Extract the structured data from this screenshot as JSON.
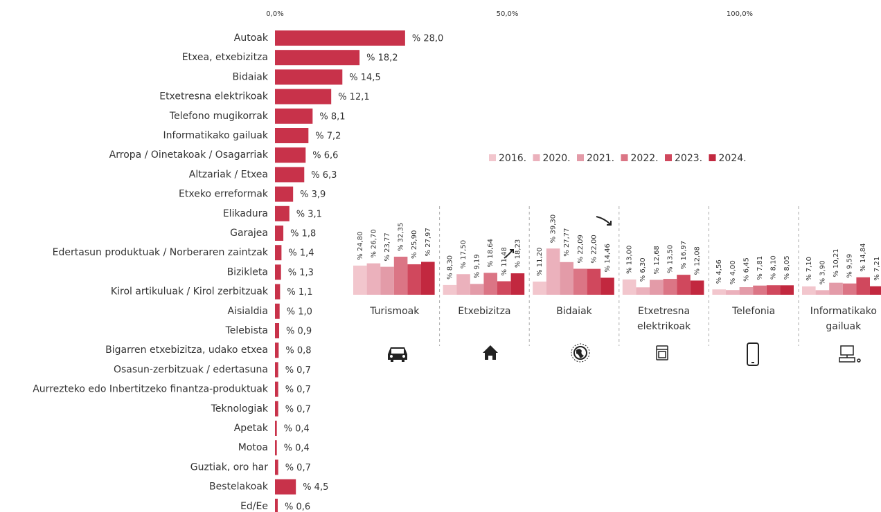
{
  "chart_data": [
    {
      "type": "bar",
      "orientation": "horizontal",
      "color": "#c8324a",
      "categories": [
        "Autoak",
        "Etxea, etxebizitza",
        "Bidaiak",
        "Etxetresna elektrikoak",
        "Telefono mugikorrak",
        "Informatikako gailuak",
        "Arropa / Oinetakoak / Osagarriak",
        "Altzariak / Etxea",
        "Etxeko erreformak",
        "Elikadura",
        "Garajea",
        "Edertasun produktuak / Norberaren zaintzak",
        "Bizikleta",
        "Kirol artikuluak / Kirol zerbitzuak",
        "Aisialdia",
        "Telebista",
        "Bigarren etxebizitza, udako etxea",
        "Osasun-zerbitzuak / edertasuna",
        "Aurrezteko edo Inbertitzeko finantza-produktuak",
        "Teknologiak",
        "Apetak",
        "Motoa",
        "Guztiak, oro har",
        "Bestelakoak",
        "Ed/Ee"
      ],
      "values": [
        28.0,
        18.2,
        14.5,
        12.1,
        8.1,
        7.2,
        6.6,
        6.3,
        3.9,
        3.1,
        1.8,
        1.4,
        1.3,
        1.1,
        1.0,
        0.9,
        0.8,
        0.7,
        0.7,
        0.7,
        0.4,
        0.4,
        0.7,
        4.5,
        0.6
      ],
      "value_labels": [
        "% 28,0",
        "% 18,2",
        "% 14,5",
        "% 12,1",
        "% 8,1",
        "% 7,2",
        "% 6,6",
        "% 6,3",
        "% 3,9",
        "% 3,1",
        "% 1,8",
        "% 1,4",
        "% 1,3",
        "% 1,1",
        "% 1,0",
        "% 0,9",
        "% 0,8",
        "% 0,7",
        "% 0,7",
        "% 0,7",
        "% 0,4",
        "% 0,4",
        "% 0,7",
        "% 4,5",
        "% 0,6"
      ],
      "xlim": [
        0,
        100
      ],
      "xticks": [
        {
          "value": 0,
          "label": "0,0%"
        },
        {
          "value": 50,
          "label": "50,0%"
        },
        {
          "value": 100,
          "label": "100,0%"
        }
      ]
    },
    {
      "type": "grouped-bar",
      "categories": [
        "Turismoak",
        "Etxebizitza",
        "Bidaiak",
        "Etxetresna elektrikoak",
        "Telefonia",
        "Informatikako gailuak"
      ],
      "series": [
        {
          "name": "2016.",
          "color": "#f2c6cd",
          "values": [
            24.8,
            8.3,
            11.2,
            13.0,
            4.56,
            7.1
          ],
          "value_labels": [
            "% 24,80",
            "% 8,30",
            "% 11,20",
            "% 13,00",
            "% 4,56",
            "% 7,10"
          ]
        },
        {
          "name": "2020.",
          "color": "#ebb1bc",
          "values": [
            26.7,
            17.5,
            39.3,
            6.3,
            4.0,
            3.9
          ],
          "value_labels": [
            "% 26,70",
            "% 17,50",
            "% 39,30",
            "% 6,30",
            "% 4,00",
            "% 3,90"
          ]
        },
        {
          "name": "2021.",
          "color": "#e39ba8",
          "values": [
            23.77,
            9.19,
            27.77,
            12.68,
            6.45,
            10.21
          ],
          "value_labels": [
            "% 23,77",
            "% 9,19",
            "% 27,77",
            "% 12,68",
            "% 6,45",
            "% 10,21"
          ]
        },
        {
          "name": "2022.",
          "color": "#db7585",
          "values": [
            32.35,
            18.64,
            22.09,
            13.5,
            7.81,
            9.59
          ],
          "value_labels": [
            "% 32,35",
            "% 18,64",
            "% 22,09",
            "% 13,50",
            "% 7,81",
            "% 9,59"
          ]
        },
        {
          "name": "2023.",
          "color": "#d0485d",
          "values": [
            25.9,
            11.48,
            22.0,
            16.97,
            8.1,
            14.84
          ],
          "value_labels": [
            "% 25,90",
            "% 11,48",
            "% 22,00",
            "% 16,97",
            "% 8,10",
            "% 14,84"
          ]
        },
        {
          "name": "2024.",
          "color": "#c2283f",
          "values": [
            27.97,
            18.23,
            14.46,
            12.08,
            8.05,
            7.21
          ],
          "value_labels": [
            "% 27,97",
            "% 18,23",
            "% 14,46",
            "% 12,08",
            "% 8,05",
            "% 7,21"
          ]
        }
      ]
    }
  ]
}
